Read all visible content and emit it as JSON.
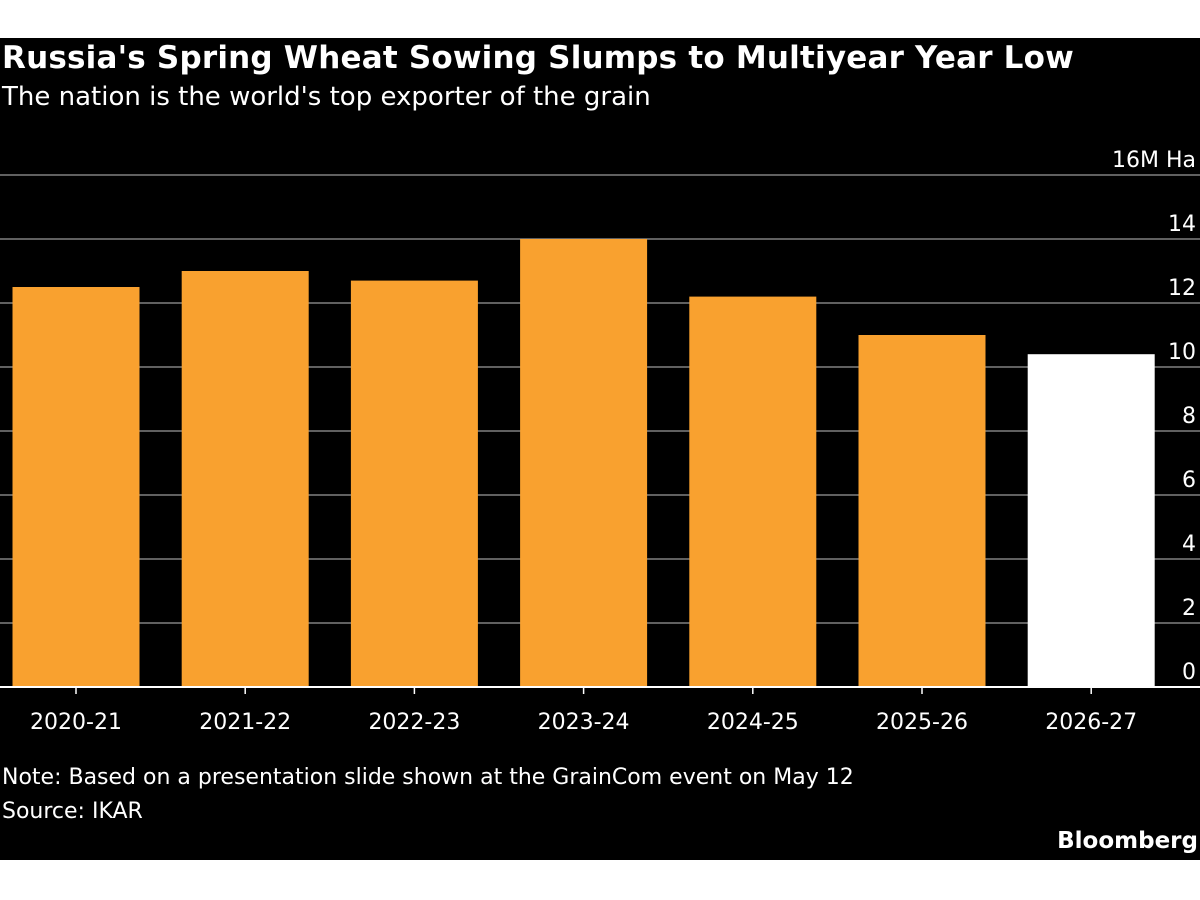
{
  "chart_data": {
    "type": "bar",
    "title": "Russia's Spring Wheat Sowing Slumps to Multiyear Year Low",
    "subtitle": "The nation is the world's top exporter of the grain",
    "categories": [
      "2020-21",
      "2021-22",
      "2022-23",
      "2023-24",
      "2024-25",
      "2025-26",
      "2026-27"
    ],
    "values": [
      12.5,
      13.0,
      12.7,
      14.0,
      12.2,
      11.0,
      10.4
    ],
    "bar_colors": [
      "#f9a12f",
      "#f9a12f",
      "#f9a12f",
      "#f9a12f",
      "#f9a12f",
      "#f9a12f",
      "#ffffff"
    ],
    "y_unit_label": "16M Ha",
    "ylim": [
      0,
      16
    ],
    "y_ticks": [
      0,
      2,
      4,
      6,
      8,
      10,
      12,
      14,
      16
    ],
    "y_tick_labels": [
      "0",
      "2",
      "4",
      "6",
      "8",
      "10",
      "12",
      "14",
      "16M Ha"
    ],
    "axis_side": "right",
    "grid": true,
    "xlabel": "",
    "ylabel": ""
  },
  "note": "Note: Based on a presentation slide shown at the GrainCom event on May 12",
  "source": "Source: IKAR",
  "brand": "Bloomberg",
  "colors": {
    "background": "#000000",
    "bar": "#f9a12f",
    "bar_highlight": "#ffffff",
    "gridline": "#808080",
    "text": "#ffffff"
  }
}
